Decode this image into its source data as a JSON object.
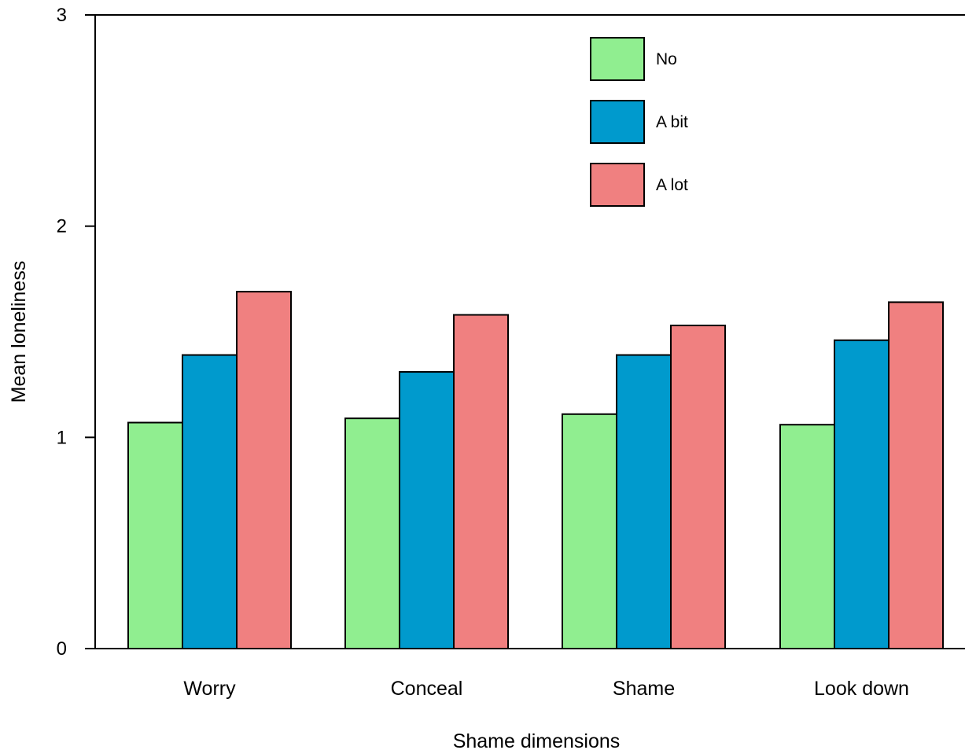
{
  "chart_data": {
    "type": "bar",
    "xlabel": "Shame dimensions",
    "ylabel": "Mean loneliness",
    "categories": [
      "Worry",
      "Conceal",
      "Shame",
      "Look down"
    ],
    "ylim": [
      0,
      3
    ],
    "yticks": [
      0,
      1,
      2,
      3
    ],
    "grid": false,
    "legend_position": "top-right",
    "series": [
      {
        "name": "No",
        "color": "#90EE90",
        "values": [
          1.07,
          1.09,
          1.11,
          1.06
        ]
      },
      {
        "name": "A bit",
        "color": "#009ACD",
        "values": [
          1.39,
          1.31,
          1.39,
          1.46
        ]
      },
      {
        "name": "A lot",
        "color": "#F08080",
        "values": [
          1.69,
          1.58,
          1.53,
          1.64
        ]
      }
    ]
  }
}
